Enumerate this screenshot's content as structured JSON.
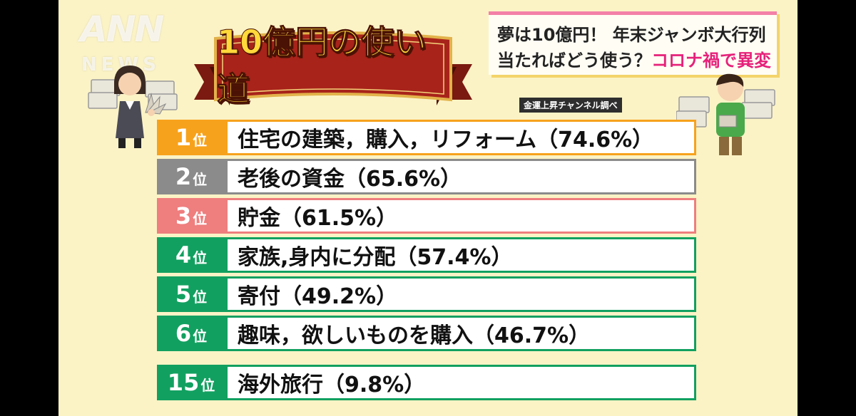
{
  "watermark": {
    "brand": "ANN",
    "sub": "NEWS"
  },
  "banner": {
    "title": "10億円の使い道"
  },
  "headline": {
    "line1": "夢は10億円！ 年末ジャンボ大行列",
    "line2_black": "当たればどう使う？",
    "line2_pink": "コロナ禍で異変"
  },
  "source": "金運上昇チャンネル調べ",
  "ranking": [
    {
      "num": "1",
      "suffix": "位",
      "label": "住宅の建築，購入，リフォーム（74.6%）"
    },
    {
      "num": "2",
      "suffix": "位",
      "label": "老後の資金（65.6%）"
    },
    {
      "num": "3",
      "suffix": "位",
      "label": "貯金（61.5%）"
    },
    {
      "num": "4",
      "suffix": "位",
      "label": "家族,身内に分配（57.4%）"
    },
    {
      "num": "5",
      "suffix": "位",
      "label": "寄付（49.2%）"
    },
    {
      "num": "6",
      "suffix": "位",
      "label": "趣味，欲しいものを購入（46.7%）"
    },
    {
      "num": "15",
      "suffix": "位",
      "label": "海外旅行（9.8%）"
    }
  ],
  "colors": {
    "gold": "#f7a21c",
    "silver": "#8b8b8b",
    "bronze": "#ef7e7e",
    "green": "#12a060",
    "background": "#fbf3c6",
    "headline_accent": "#e6217a"
  }
}
